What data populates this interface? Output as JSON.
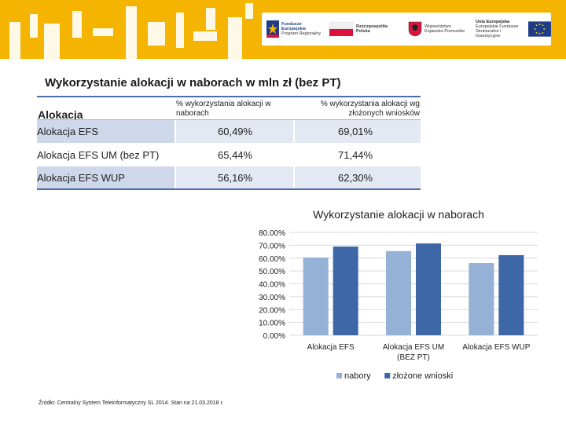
{
  "header": {
    "logos": [
      {
        "line1": "Fundusze",
        "line2": "Europejskie",
        "line3": "Program Regionalny"
      },
      {
        "line1": "Rzeczpospolita",
        "line2": "Polska"
      },
      {
        "line1": "Województwo",
        "line2": "Kujawsko-Pomorskie"
      },
      {
        "line1": "Unia Europejska",
        "line2": "Europejskie Fundusze",
        "line3": "Strukturalne i Inwestycyjne"
      }
    ],
    "colors": {
      "band": "#f5b400",
      "eu_blue": "#1f3c88",
      "poland_red": "#dc143c"
    }
  },
  "table": {
    "title": "Wykorzystanie alokacji w naborach w mln zł (bez PT)",
    "headers": [
      "Alokacja",
      "% wykorzystania alokacji w naborach",
      "% wykorzystania alokacji wg złożonych wniosków"
    ],
    "rows": [
      {
        "name": "Alokacja EFS",
        "naborach": "60,49%",
        "wnioskow": "69,01%"
      },
      {
        "name": "Alokacja EFS UM (bez PT)",
        "naborach": "65,44%",
        "wnioskow": "71,44%"
      },
      {
        "name": "Alokacja EFS WUP",
        "naborach": "56,16%",
        "wnioskow": "62,30%"
      }
    ]
  },
  "chart_data": {
    "type": "bar",
    "title": "Wykorzystanie alokacji w naborach",
    "categories": [
      "Alokacja EFS",
      "Alokacja EFS UM (bez PT)",
      "Alokacja EFS WUP"
    ],
    "category_lines": [
      [
        "Alokacja EFS"
      ],
      [
        "Alokacja EFS UM",
        "(BEZ PT)"
      ],
      [
        "Alokacja EFS WUP"
      ]
    ],
    "series": [
      {
        "name": "nabory",
        "values": [
          60.49,
          65.44,
          56.16
        ],
        "color": "#95b1d6"
      },
      {
        "name": "złożone wnioski",
        "values": [
          69.01,
          71.44,
          62.3
        ],
        "color": "#3d67a6"
      }
    ],
    "ylim": [
      0,
      80
    ],
    "yticks": [
      0,
      10,
      20,
      30,
      40,
      50,
      60,
      70,
      80
    ],
    "ytick_labels": [
      "0.00%",
      "10.00%",
      "20.00%",
      "30.00%",
      "40.00%",
      "50.00%",
      "60.00%",
      "70.00%",
      "80.00%"
    ],
    "grid": true,
    "legend": "bottom"
  },
  "footer": {
    "source": "Źródło: Centralny System Teleinformatyczny SL 2014. Stan na 21.03.2018 r."
  }
}
